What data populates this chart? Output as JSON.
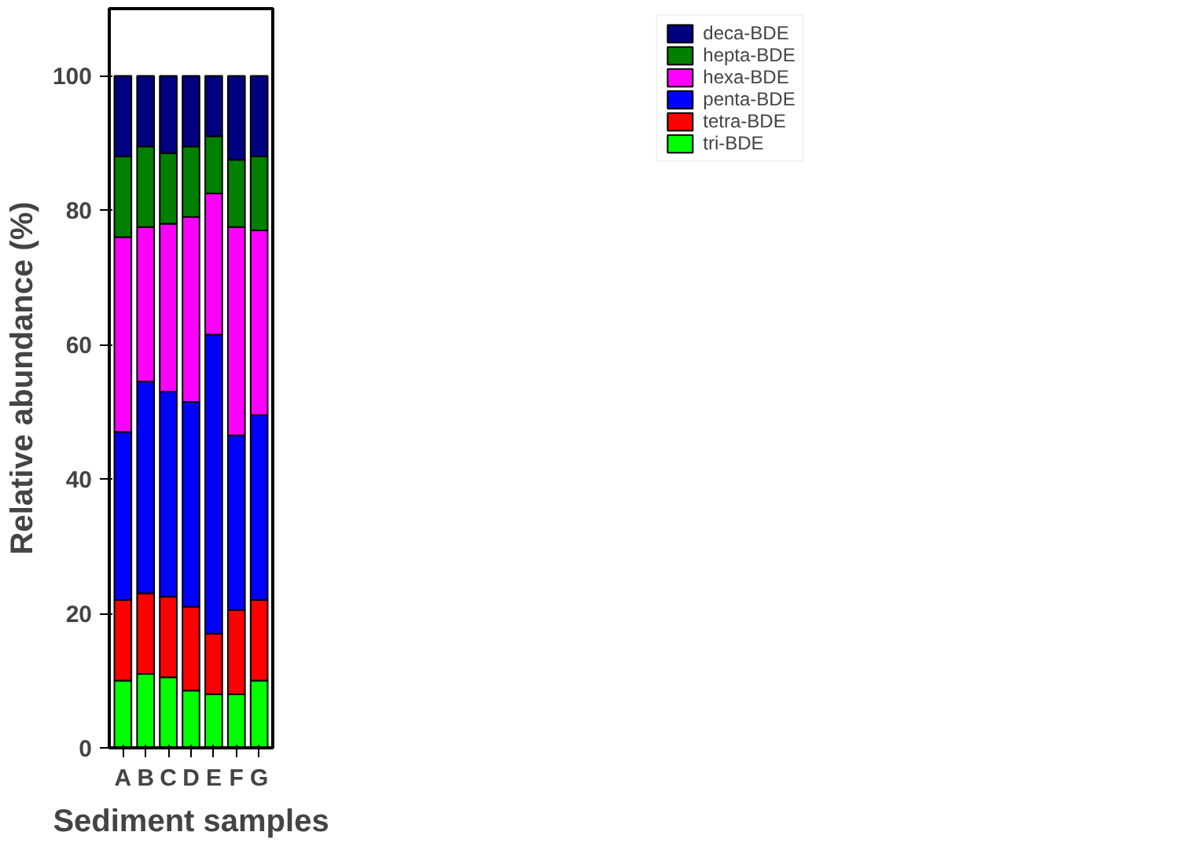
{
  "chart_data": {
    "type": "bar",
    "stacked": true,
    "xlabel": "Sediment samples",
    "ylabel": "Relative abundance (%)",
    "categories": [
      "A",
      "B",
      "C",
      "D",
      "E",
      "F",
      "G"
    ],
    "series": [
      {
        "name": "tri-BDE",
        "color": "#00ff00",
        "values": [
          10,
          11,
          10.5,
          8.5,
          8,
          8,
          10
        ]
      },
      {
        "name": "tetra-BDE",
        "color": "#ff0000",
        "values": [
          12,
          12,
          12,
          12.5,
          9,
          12.5,
          12
        ]
      },
      {
        "name": "penta-BDE",
        "color": "#0000ff",
        "values": [
          25,
          31.5,
          30.5,
          30.5,
          44.5,
          26,
          27.5
        ]
      },
      {
        "name": "hexa-BDE",
        "color": "#ff00ff",
        "values": [
          29,
          23,
          25,
          27.5,
          21,
          31,
          27.5
        ]
      },
      {
        "name": "hepta-BDE",
        "color": "#007f00",
        "values": [
          12,
          12,
          10.5,
          10.5,
          8.5,
          10,
          11
        ]
      },
      {
        "name": "deca-BDE",
        "color": "#000080",
        "values": [
          12,
          10.5,
          11.5,
          10.5,
          9,
          12.5,
          12
        ]
      }
    ],
    "ylim": [
      0,
      110
    ],
    "yticks": [
      0,
      20,
      40,
      60,
      80,
      100
    ],
    "grid": false,
    "legend": "right"
  }
}
